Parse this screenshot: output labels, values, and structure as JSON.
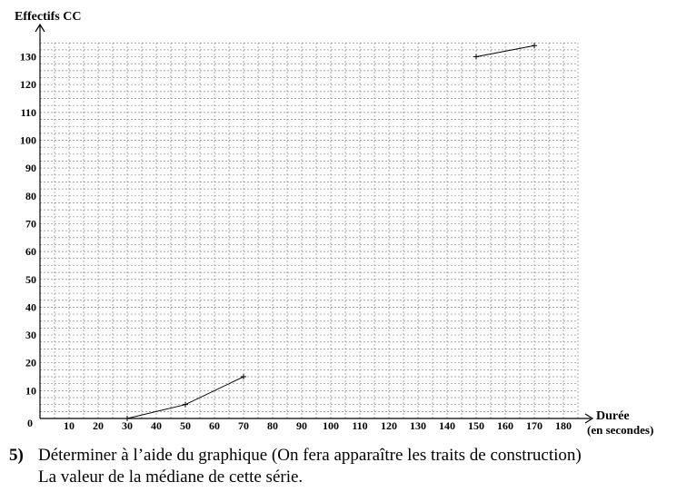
{
  "chart_data": {
    "type": "line",
    "ylabel": "Effectifs CC",
    "xlabel": "Durée",
    "xlabel_unit": "(en secondes)",
    "xlim": [
      0,
      185
    ],
    "ylim": [
      0,
      135
    ],
    "x_ticks": [
      10,
      20,
      30,
      40,
      50,
      60,
      70,
      80,
      90,
      100,
      110,
      120,
      130,
      140,
      150,
      160,
      170,
      180
    ],
    "y_ticks": [
      10,
      20,
      30,
      40,
      50,
      60,
      70,
      80,
      90,
      100,
      110,
      120,
      130
    ],
    "origin_label": "0",
    "grid": true,
    "series": [
      {
        "x": [
          30,
          50,
          70
        ],
        "y": [
          0,
          5,
          15
        ]
      },
      {
        "x": [
          150,
          170
        ],
        "y": [
          130,
          134
        ]
      }
    ]
  },
  "question": {
    "number": "5)",
    "line1": "Déterminer à l’aide du graphique (On fera apparaître les traits de construction)",
    "line2": "La valeur de la médiane de cette série."
  },
  "colors": {
    "grid": "#888888",
    "axis": "#000000",
    "line": "#000000"
  }
}
